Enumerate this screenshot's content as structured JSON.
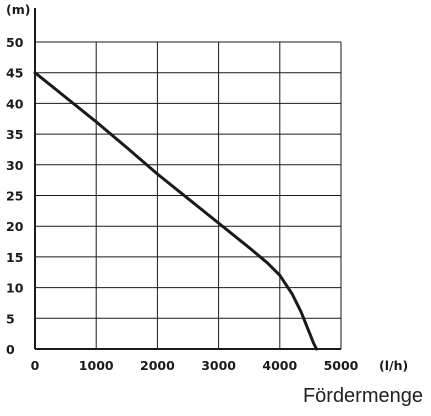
{
  "chart_data": {
    "type": "line",
    "xlabel": "(l/h)",
    "ylabel": "(m)",
    "caption": "Fördermenge",
    "xlim": [
      0,
      5000
    ],
    "ylim": [
      0,
      50
    ],
    "x_ticks": [
      "0",
      "1000",
      "2000",
      "3000",
      "4000",
      "5000"
    ],
    "y_ticks": [
      "0",
      "5",
      "10",
      "15",
      "20",
      "25",
      "30",
      "35",
      "40",
      "45",
      "50"
    ],
    "grid": true,
    "series": [
      {
        "x": [
          0,
          500,
          1000,
          1500,
          2000,
          2500,
          3000,
          3500,
          3800,
          4000,
          4200,
          4350,
          4450,
          4550,
          4600
        ],
        "y": [
          45,
          41,
          37,
          32.8,
          28.5,
          24.5,
          20.5,
          16.5,
          14,
          12,
          9,
          6,
          3.5,
          1,
          0
        ]
      }
    ]
  }
}
